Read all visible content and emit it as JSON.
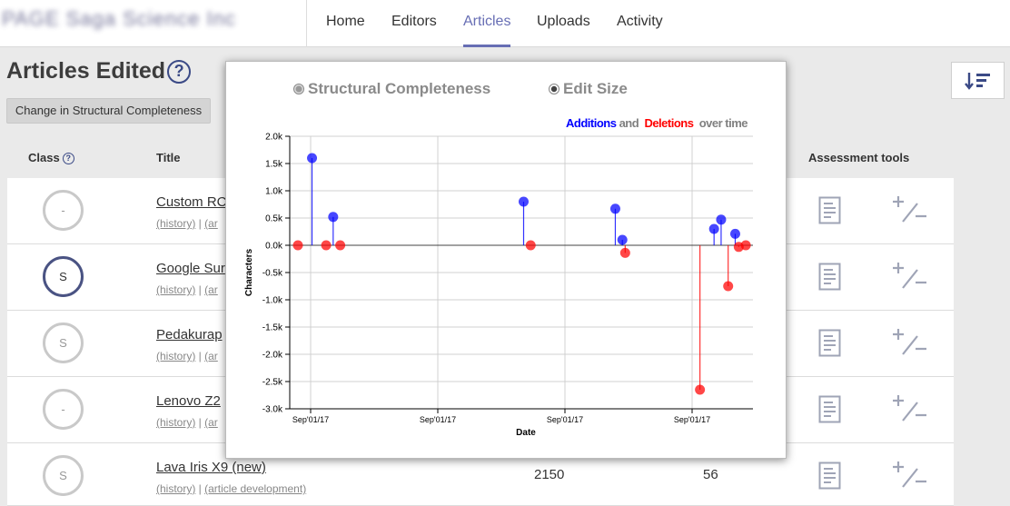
{
  "nav": {
    "brand": "PAGE Saga Science Inc",
    "links": [
      "Home",
      "Editors",
      "Articles",
      "Uploads",
      "Activity"
    ],
    "active": "Articles"
  },
  "page": {
    "title": "Articles Edited",
    "help_glyph": "?",
    "change_button": "Change in Structural Completeness"
  },
  "table": {
    "headers": {
      "class": "Class",
      "title": "Title",
      "tools": "Assessment tools"
    },
    "rows": [
      {
        "class": "-",
        "title": "Custom RC",
        "history": "(history)",
        "sep": " | ",
        "dev": "(ar",
        "chars": "",
        "refs": ""
      },
      {
        "class": "S",
        "title": "Google Sur",
        "history": "(history)",
        "sep": " | ",
        "dev": "(ar",
        "chars": "",
        "refs": ""
      },
      {
        "class": "S",
        "title": "Pedakurap",
        "history": "(history)",
        "sep": " | ",
        "dev": "(ar",
        "chars": "",
        "refs": ""
      },
      {
        "class": "-",
        "title": "Lenovo Z2",
        "history": "(history)",
        "sep": " | ",
        "dev": "(ar",
        "chars": "",
        "refs": ""
      },
      {
        "class": "S",
        "title": "Lava Iris X9 (new)",
        "history": "(history)",
        "sep": " | ",
        "dev": "(article development)",
        "chars": "2150",
        "refs": "56"
      }
    ]
  },
  "popup": {
    "radio_structural": "Structural Completeness",
    "radio_edit_size": "Edit Size",
    "selected": "Edit Size",
    "legend_additions": "Additions",
    "legend_and": " and ",
    "legend_deletions": "Deletions",
    "legend_over_time": " over time",
    "colors": {
      "additions": "#0000ff",
      "deletions": "#ff0000",
      "grey": "#808080"
    }
  },
  "chart_data": {
    "type": "scatter",
    "title": "",
    "xlabel": "Date",
    "ylabel": "Characters",
    "ylim": [
      -3000,
      2000
    ],
    "y_ticks": [
      "2.0k",
      "1.5k",
      "1.0k",
      "0.5k",
      "0.0k",
      "-0.5k",
      "-1.0k",
      "-1.5k",
      "-2.0k",
      "-2.5k",
      "-3.0k"
    ],
    "x_ticks": [
      "Sep'01/17",
      "Sep'01/17",
      "Sep'01/17",
      "Sep'01/17"
    ],
    "grid": true,
    "legend": "top-right",
    "series": [
      {
        "name": "Additions",
        "color": "#0000ff",
        "points": [
          {
            "i": 2,
            "y": 1600
          },
          {
            "i": 5,
            "y": 520
          },
          {
            "i": 32,
            "y": 800
          },
          {
            "i": 45,
            "y": 670
          },
          {
            "i": 46,
            "y": 100
          },
          {
            "i": 59,
            "y": 300
          },
          {
            "i": 60,
            "y": 470
          },
          {
            "i": 62,
            "y": 210
          }
        ]
      },
      {
        "name": "Deletions",
        "color": "#ff0000",
        "points": [
          {
            "i": 0,
            "y": 0
          },
          {
            "i": 4,
            "y": 0
          },
          {
            "i": 6,
            "y": 0
          },
          {
            "i": 33,
            "y": 0
          },
          {
            "i": 46.4,
            "y": -140
          },
          {
            "i": 57,
            "y": -2650
          },
          {
            "i": 61,
            "y": -750
          },
          {
            "i": 62.5,
            "y": -30
          },
          {
            "i": 63.5,
            "y": 0
          }
        ]
      }
    ]
  }
}
